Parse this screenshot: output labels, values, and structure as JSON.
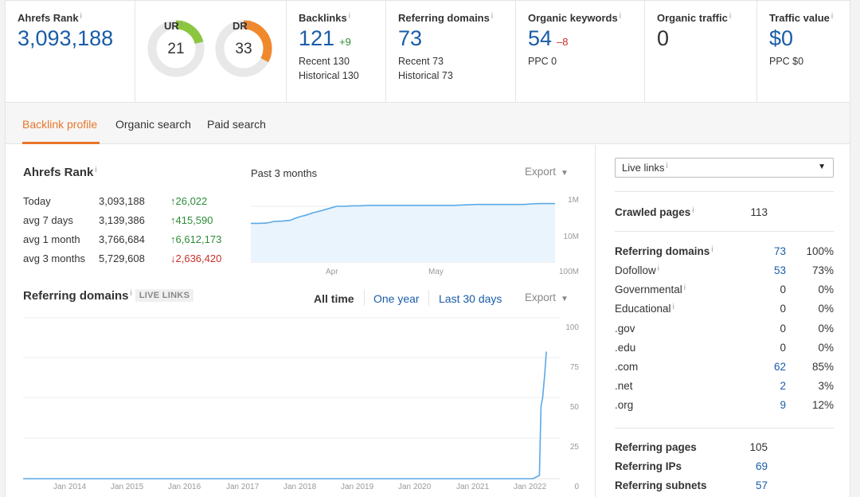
{
  "metrics": {
    "ahrefs_rank": {
      "label": "Ahrefs Rank",
      "value": "3,093,188"
    },
    "ur": {
      "label": "UR",
      "value": "21",
      "score": 21,
      "color": "#8cc63f"
    },
    "dr": {
      "label": "DR",
      "value": "33",
      "score": 33,
      "color": "#f0882c"
    },
    "backlinks": {
      "label": "Backlinks",
      "value": "121",
      "delta": "+9",
      "recent": "Recent 130",
      "historical": "Historical 130"
    },
    "referring_domains": {
      "label": "Referring domains",
      "value": "73",
      "recent": "Recent 73",
      "historical": "Historical 73"
    },
    "organic_keywords": {
      "label": "Organic keywords",
      "value": "54",
      "delta": "–8",
      "ppc": "PPC 0"
    },
    "organic_traffic": {
      "label": "Organic traffic",
      "value": "0"
    },
    "traffic_value": {
      "label": "Traffic value",
      "value": "$0",
      "ppc": "PPC $0"
    }
  },
  "info_glyph": "i",
  "tabs": [
    {
      "label": "Backlink profile",
      "active": true
    },
    {
      "label": "Organic search",
      "active": false
    },
    {
      "label": "Paid search",
      "active": false
    }
  ],
  "rank_section": {
    "title": "Ahrefs Rank",
    "period": "Past 3 months",
    "export_label": "Export",
    "rows": [
      {
        "label": "Today",
        "value": "3,093,188",
        "change": "↑26,022",
        "dir": "up"
      },
      {
        "label": "avg 7 days",
        "value": "3,139,386",
        "change": "↑415,590",
        "dir": "up"
      },
      {
        "label": "avg 1 month",
        "value": "3,766,684",
        "change": "↑6,612,173",
        "dir": "up"
      },
      {
        "label": "avg 3 months",
        "value": "5,729,608",
        "change": "↓2,636,420",
        "dir": "down"
      }
    ]
  },
  "rank_chart": {
    "type": "area",
    "y_labels": [
      "1M",
      "10M",
      "100M"
    ],
    "x_labels": [
      "Apr",
      "May"
    ],
    "series_color": "#5aa9e6",
    "fill_color": "#eaf4fc",
    "values": [
      4.1,
      4.1,
      4.0,
      3.5,
      3.4,
      3.2,
      2.5,
      2.1,
      1.7,
      1.45,
      1.2,
      1.0,
      1.0,
      0.96,
      0.96,
      0.93,
      0.93,
      0.93,
      0.93,
      0.93,
      0.93,
      0.93,
      0.93,
      0.93,
      0.93,
      0.93,
      0.93,
      0.9,
      0.88,
      0.86,
      0.86,
      0.86,
      0.86,
      0.86,
      0.86,
      0.86,
      0.82,
      0.8,
      0.8,
      0.8
    ]
  },
  "rd_section": {
    "title": "Referring domains",
    "badge": "LIVE LINKS",
    "ranges": [
      {
        "label": "All time",
        "selected": true
      },
      {
        "label": "One year",
        "selected": false
      },
      {
        "label": "Last 30 days",
        "selected": false
      }
    ],
    "export_label": "Export"
  },
  "rd_chart": {
    "type": "line",
    "y_labels": [
      "100",
      "75",
      "50",
      "25",
      "0"
    ],
    "ylim": [
      0,
      100
    ],
    "x_labels": [
      "Jan 2014",
      "Jan 2015",
      "Jan 2016",
      "Jan 2017",
      "Jan 2018",
      "Jan 2019",
      "Jan 2020",
      "Jan 2021",
      "Jan 2022"
    ],
    "series_color": "#5aa9e6",
    "points": [
      [
        0,
        0
      ],
      [
        0.95,
        0
      ],
      [
        0.962,
        2
      ],
      [
        0.965,
        45
      ],
      [
        0.968,
        50
      ],
      [
        0.972,
        65
      ],
      [
        0.975,
        79
      ]
    ]
  },
  "side": {
    "select_label": "Live links",
    "crawled_pages": {
      "label": "Crawled pages",
      "value": "113"
    },
    "referring_domains": {
      "label": "Referring domains",
      "value": "73",
      "pct": "100%"
    },
    "rows": [
      {
        "label": "Dofollow",
        "value": "53",
        "pct": "73%",
        "link": true,
        "info": true
      },
      {
        "label": "Governmental",
        "value": "0",
        "pct": "0%",
        "link": false,
        "info": true
      },
      {
        "label": "Educational",
        "value": "0",
        "pct": "0%",
        "link": false,
        "info": true
      },
      {
        "label": ".gov",
        "value": "0",
        "pct": "0%",
        "link": false,
        "info": false
      },
      {
        "label": ".edu",
        "value": "0",
        "pct": "0%",
        "link": false,
        "info": false
      },
      {
        "label": ".com",
        "value": "62",
        "pct": "85%",
        "link": true,
        "info": false
      },
      {
        "label": ".net",
        "value": "2",
        "pct": "3%",
        "link": true,
        "info": false
      },
      {
        "label": ".org",
        "value": "9",
        "pct": "12%",
        "link": true,
        "info": false
      }
    ],
    "bottom": [
      {
        "label": "Referring pages",
        "value": "105",
        "link": false
      },
      {
        "label": "Referring IPs",
        "value": "69",
        "link": true
      },
      {
        "label": "Referring subnets",
        "value": "57",
        "link": true
      }
    ]
  }
}
